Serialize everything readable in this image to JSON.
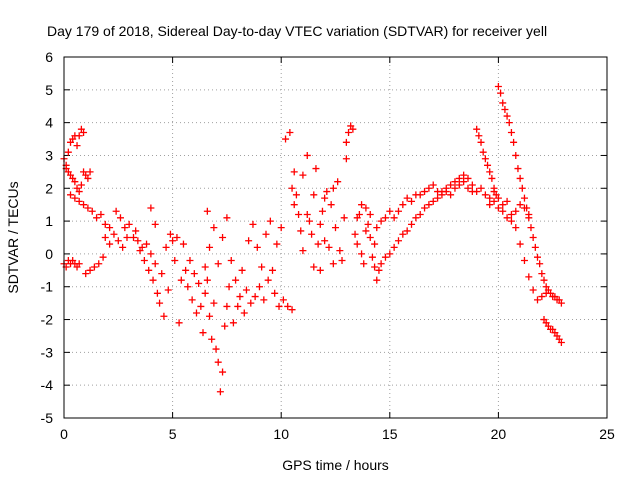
{
  "chart_data": {
    "type": "scatter",
    "title": "Day 179 of 2018, Sidereal Day-to-day VTEC variation (SDTVAR) for receiver yell",
    "xlabel": "GPS time / hours",
    "ylabel": "SDTVAR / TECUs",
    "xlim": [
      0,
      25
    ],
    "ylim": [
      -5,
      6
    ],
    "xticks": [
      0,
      5,
      10,
      15,
      20,
      25
    ],
    "yticks": [
      -5,
      -4,
      -3,
      -2,
      -1,
      0,
      1,
      2,
      3,
      4,
      5,
      6
    ],
    "grid": true,
    "marker": "+",
    "color": "#ff0000",
    "series": [
      {
        "name": "SDTVAR",
        "points": [
          [
            0.0,
            -0.3
          ],
          [
            0.1,
            -0.4
          ],
          [
            0.2,
            -0.2
          ],
          [
            0.3,
            -0.3
          ],
          [
            0.4,
            -0.2
          ],
          [
            0.5,
            -0.3
          ],
          [
            0.6,
            -0.4
          ],
          [
            0.7,
            -0.3
          ],
          [
            0.0,
            2.9
          ],
          [
            0.1,
            2.7
          ],
          [
            0.2,
            3.1
          ],
          [
            0.3,
            3.4
          ],
          [
            0.4,
            3.5
          ],
          [
            0.5,
            3.6
          ],
          [
            0.6,
            3.3
          ],
          [
            0.7,
            3.6
          ],
          [
            0.8,
            3.8
          ],
          [
            0.9,
            3.7
          ],
          [
            0.1,
            2.6
          ],
          [
            0.2,
            2.5
          ],
          [
            0.3,
            2.4
          ],
          [
            0.4,
            2.3
          ],
          [
            0.5,
            2.2
          ],
          [
            0.6,
            2.0
          ],
          [
            0.7,
            1.9
          ],
          [
            0.8,
            2.1
          ],
          [
            0.9,
            2.5
          ],
          [
            1.0,
            2.4
          ],
          [
            1.1,
            2.3
          ],
          [
            1.2,
            2.5
          ],
          [
            0.3,
            1.8
          ],
          [
            0.5,
            1.7
          ],
          [
            0.7,
            1.6
          ],
          [
            0.9,
            1.5
          ],
          [
            1.1,
            1.4
          ],
          [
            1.3,
            1.3
          ],
          [
            1.5,
            1.1
          ],
          [
            1.7,
            1.2
          ],
          [
            1.9,
            0.9
          ],
          [
            2.1,
            0.8
          ],
          [
            1.0,
            -0.6
          ],
          [
            1.2,
            -0.5
          ],
          [
            1.4,
            -0.4
          ],
          [
            1.6,
            -0.3
          ],
          [
            1.8,
            -0.1
          ],
          [
            1.9,
            0.5
          ],
          [
            2.1,
            0.3
          ],
          [
            2.3,
            0.6
          ],
          [
            2.5,
            0.4
          ],
          [
            2.7,
            0.2
          ],
          [
            2.9,
            0.5
          ],
          [
            2.4,
            1.3
          ],
          [
            2.6,
            1.1
          ],
          [
            2.8,
            0.8
          ],
          [
            3.0,
            0.9
          ],
          [
            3.2,
            0.5
          ],
          [
            3.4,
            0.4
          ],
          [
            3.6,
            0.2
          ],
          [
            3.8,
            0.3
          ],
          [
            4.0,
            0.0
          ],
          [
            4.2,
            -0.3
          ],
          [
            3.3,
            0.7
          ],
          [
            3.5,
            0.1
          ],
          [
            3.7,
            -0.2
          ],
          [
            3.9,
            -0.5
          ],
          [
            4.1,
            -0.8
          ],
          [
            4.3,
            -1.2
          ],
          [
            4.5,
            -0.6
          ],
          [
            4.7,
            0.2
          ],
          [
            4.9,
            0.6
          ],
          [
            5.0,
            0.4
          ],
          [
            4.0,
            1.4
          ],
          [
            4.2,
            0.9
          ],
          [
            4.4,
            -1.5
          ],
          [
            4.6,
            -1.9
          ],
          [
            4.8,
            -1.1
          ],
          [
            5.1,
            -0.2
          ],
          [
            5.2,
            0.5
          ],
          [
            5.3,
            -2.1
          ],
          [
            5.4,
            -0.8
          ],
          [
            5.5,
            0.3
          ],
          [
            5.6,
            -0.5
          ],
          [
            5.7,
            -1.0
          ],
          [
            5.8,
            -0.2
          ],
          [
            5.9,
            -1.4
          ],
          [
            6.0,
            -0.6
          ],
          [
            6.1,
            -1.8
          ],
          [
            6.2,
            -0.9
          ],
          [
            6.3,
            -1.6
          ],
          [
            6.4,
            -2.4
          ],
          [
            6.5,
            -1.2
          ],
          [
            6.6,
            -0.8
          ],
          [
            6.7,
            -1.9
          ],
          [
            6.8,
            -2.6
          ],
          [
            6.9,
            -1.5
          ],
          [
            7.0,
            -2.9
          ],
          [
            7.1,
            -3.3
          ],
          [
            7.2,
            -4.2
          ],
          [
            7.3,
            -3.6
          ],
          [
            7.4,
            -2.2
          ],
          [
            7.5,
            -1.6
          ],
          [
            6.5,
            -0.4
          ],
          [
            6.7,
            0.2
          ],
          [
            6.9,
            0.8
          ],
          [
            7.1,
            -0.3
          ],
          [
            7.3,
            0.5
          ],
          [
            7.5,
            1.1
          ],
          [
            7.7,
            -0.2
          ],
          [
            7.9,
            -0.8
          ],
          [
            8.1,
            -1.3
          ],
          [
            8.3,
            -1.8
          ],
          [
            6.6,
            1.3
          ],
          [
            7.6,
            -1.0
          ],
          [
            7.8,
            -2.1
          ],
          [
            8.0,
            -1.6
          ],
          [
            8.2,
            -0.5
          ],
          [
            8.4,
            -1.1
          ],
          [
            8.6,
            -1.5
          ],
          [
            8.8,
            -1.3
          ],
          [
            9.0,
            -1.0
          ],
          [
            9.2,
            -1.4
          ],
          [
            8.5,
            0.4
          ],
          [
            8.7,
            0.9
          ],
          [
            8.9,
            0.2
          ],
          [
            9.1,
            -0.4
          ],
          [
            9.3,
            0.6
          ],
          [
            9.5,
            1.0
          ],
          [
            9.7,
            -1.2
          ],
          [
            9.9,
            -1.6
          ],
          [
            10.1,
            -1.4
          ],
          [
            10.3,
            -1.6
          ],
          [
            10.5,
            -1.7
          ],
          [
            9.4,
            -0.8
          ],
          [
            9.6,
            -0.5
          ],
          [
            9.8,
            0.3
          ],
          [
            10.0,
            0.8
          ],
          [
            10.2,
            3.5
          ],
          [
            10.4,
            3.7
          ],
          [
            10.5,
            2.0
          ],
          [
            10.6,
            1.5
          ],
          [
            10.7,
            1.8
          ],
          [
            10.8,
            1.2
          ],
          [
            10.9,
            0.7
          ],
          [
            11.0,
            2.4
          ],
          [
            11.2,
            3.0
          ],
          [
            11.3,
            1.0
          ],
          [
            11.4,
            0.6
          ],
          [
            11.5,
            1.8
          ],
          [
            11.6,
            2.6
          ],
          [
            11.7,
            0.3
          ],
          [
            11.8,
            0.9
          ],
          [
            11.9,
            1.3
          ],
          [
            12.0,
            0.4
          ],
          [
            11.5,
            -0.4
          ],
          [
            11.8,
            -0.5
          ],
          [
            12.1,
            1.9
          ],
          [
            12.2,
            0.2
          ],
          [
            12.3,
            1.5
          ],
          [
            12.4,
            -0.3
          ],
          [
            12.5,
            0.8
          ],
          [
            12.6,
            2.2
          ],
          [
            12.7,
            0.1
          ],
          [
            12.8,
            -0.2
          ],
          [
            12.9,
            1.1
          ],
          [
            13.0,
            2.9
          ],
          [
            13.0,
            3.4
          ],
          [
            13.1,
            3.7
          ],
          [
            13.2,
            3.9
          ],
          [
            13.3,
            3.8
          ],
          [
            13.4,
            0.6
          ],
          [
            13.5,
            0.3
          ],
          [
            13.6,
            1.2
          ],
          [
            13.7,
            0.0
          ],
          [
            13.8,
            -0.3
          ],
          [
            13.9,
            1.4
          ],
          [
            14.0,
            0.9
          ],
          [
            14.1,
            0.5
          ],
          [
            14.2,
            -0.1
          ],
          [
            14.3,
            -0.4
          ],
          [
            14.4,
            -0.8
          ],
          [
            14.5,
            -0.5
          ],
          [
            14.6,
            -0.3
          ],
          [
            14.8,
            -0.1
          ],
          [
            15.0,
            0.0
          ],
          [
            15.2,
            0.2
          ],
          [
            15.4,
            0.4
          ],
          [
            15.6,
            0.6
          ],
          [
            15.8,
            0.7
          ],
          [
            16.0,
            0.9
          ],
          [
            16.2,
            1.1
          ],
          [
            16.4,
            1.2
          ],
          [
            16.6,
            1.4
          ],
          [
            16.8,
            1.5
          ],
          [
            14.4,
            0.8
          ],
          [
            14.6,
            1.0
          ],
          [
            14.8,
            1.1
          ],
          [
            15.0,
            1.3
          ],
          [
            15.2,
            1.1
          ],
          [
            15.4,
            1.3
          ],
          [
            15.6,
            1.5
          ],
          [
            15.8,
            1.7
          ],
          [
            16.0,
            1.6
          ],
          [
            16.2,
            1.8
          ],
          [
            16.4,
            1.8
          ],
          [
            16.6,
            1.9
          ],
          [
            16.8,
            2.0
          ],
          [
            17.0,
            2.1
          ],
          [
            17.2,
            1.9
          ],
          [
            17.4,
            1.8
          ],
          [
            17.6,
            1.9
          ],
          [
            17.8,
            2.1
          ],
          [
            18.0,
            2.2
          ],
          [
            18.2,
            2.3
          ],
          [
            17.0,
            1.6
          ],
          [
            17.2,
            1.7
          ],
          [
            17.4,
            1.9
          ],
          [
            17.6,
            2.0
          ],
          [
            17.8,
            1.8
          ],
          [
            18.0,
            2.0
          ],
          [
            18.2,
            2.1
          ],
          [
            18.4,
            2.2
          ],
          [
            18.6,
            2.0
          ],
          [
            18.8,
            1.9
          ],
          [
            18.4,
            2.4
          ],
          [
            18.6,
            2.3
          ],
          [
            18.8,
            2.1
          ],
          [
            19.0,
            1.9
          ],
          [
            19.2,
            2.0
          ],
          [
            19.4,
            1.8
          ],
          [
            19.6,
            1.7
          ],
          [
            19.8,
            1.9
          ],
          [
            20.0,
            1.7
          ],
          [
            20.2,
            1.5
          ],
          [
            19.0,
            3.8
          ],
          [
            19.1,
            3.6
          ],
          [
            19.2,
            3.4
          ],
          [
            19.3,
            3.1
          ],
          [
            19.4,
            2.9
          ],
          [
            19.5,
            2.7
          ],
          [
            19.6,
            2.5
          ],
          [
            19.7,
            2.3
          ],
          [
            19.8,
            2.0
          ],
          [
            19.9,
            1.8
          ],
          [
            20.0,
            5.1
          ],
          [
            20.1,
            4.9
          ],
          [
            20.2,
            4.6
          ],
          [
            20.3,
            4.4
          ],
          [
            20.4,
            4.2
          ],
          [
            20.5,
            4.0
          ],
          [
            20.6,
            3.7
          ],
          [
            20.7,
            3.4
          ],
          [
            20.8,
            3.0
          ],
          [
            20.9,
            2.6
          ],
          [
            21.0,
            2.3
          ],
          [
            21.1,
            2.0
          ],
          [
            21.2,
            1.7
          ],
          [
            21.3,
            1.4
          ],
          [
            21.4,
            1.1
          ],
          [
            21.5,
            0.8
          ],
          [
            21.6,
            0.5
          ],
          [
            21.7,
            0.2
          ],
          [
            21.8,
            -0.1
          ],
          [
            21.9,
            -0.3
          ],
          [
            20.4,
            1.6
          ],
          [
            20.6,
            1.2
          ],
          [
            20.8,
            0.8
          ],
          [
            21.0,
            0.3
          ],
          [
            21.2,
            -0.2
          ],
          [
            21.4,
            -0.7
          ],
          [
            21.6,
            -1.1
          ],
          [
            21.8,
            -1.4
          ],
          [
            22.0,
            -1.3
          ],
          [
            22.2,
            -1.2
          ],
          [
            22.0,
            -0.6
          ],
          [
            22.1,
            -0.8
          ],
          [
            22.2,
            -1.0
          ],
          [
            22.3,
            -1.1
          ],
          [
            22.4,
            -1.2
          ],
          [
            22.5,
            -1.3
          ],
          [
            22.6,
            -1.3
          ],
          [
            22.7,
            -1.4
          ],
          [
            22.8,
            -1.4
          ],
          [
            22.9,
            -1.5
          ],
          [
            22.1,
            -2.0
          ],
          [
            22.2,
            -2.1
          ],
          [
            22.3,
            -2.2
          ],
          [
            22.4,
            -2.3
          ],
          [
            22.5,
            -2.3
          ],
          [
            22.6,
            -2.4
          ],
          [
            22.7,
            -2.5
          ],
          [
            22.8,
            -2.6
          ],
          [
            22.9,
            -2.7
          ],
          [
            19.6,
            1.5
          ],
          [
            19.8,
            1.6
          ],
          [
            20.0,
            1.4
          ],
          [
            20.2,
            1.3
          ],
          [
            20.4,
            1.1
          ],
          [
            20.6,
            1.0
          ],
          [
            20.8,
            1.3
          ],
          [
            21.0,
            1.5
          ],
          [
            21.2,
            1.4
          ],
          [
            21.4,
            1.2
          ],
          [
            13.5,
            1.1
          ],
          [
            13.7,
            1.5
          ],
          [
            13.9,
            0.7
          ],
          [
            14.1,
            1.2
          ],
          [
            14.3,
            0.3
          ],
          [
            12.0,
            1.7
          ],
          [
            11.2,
            1.2
          ],
          [
            12.4,
            2.0
          ],
          [
            10.6,
            2.5
          ],
          [
            11.0,
            0.1
          ]
        ]
      }
    ]
  }
}
